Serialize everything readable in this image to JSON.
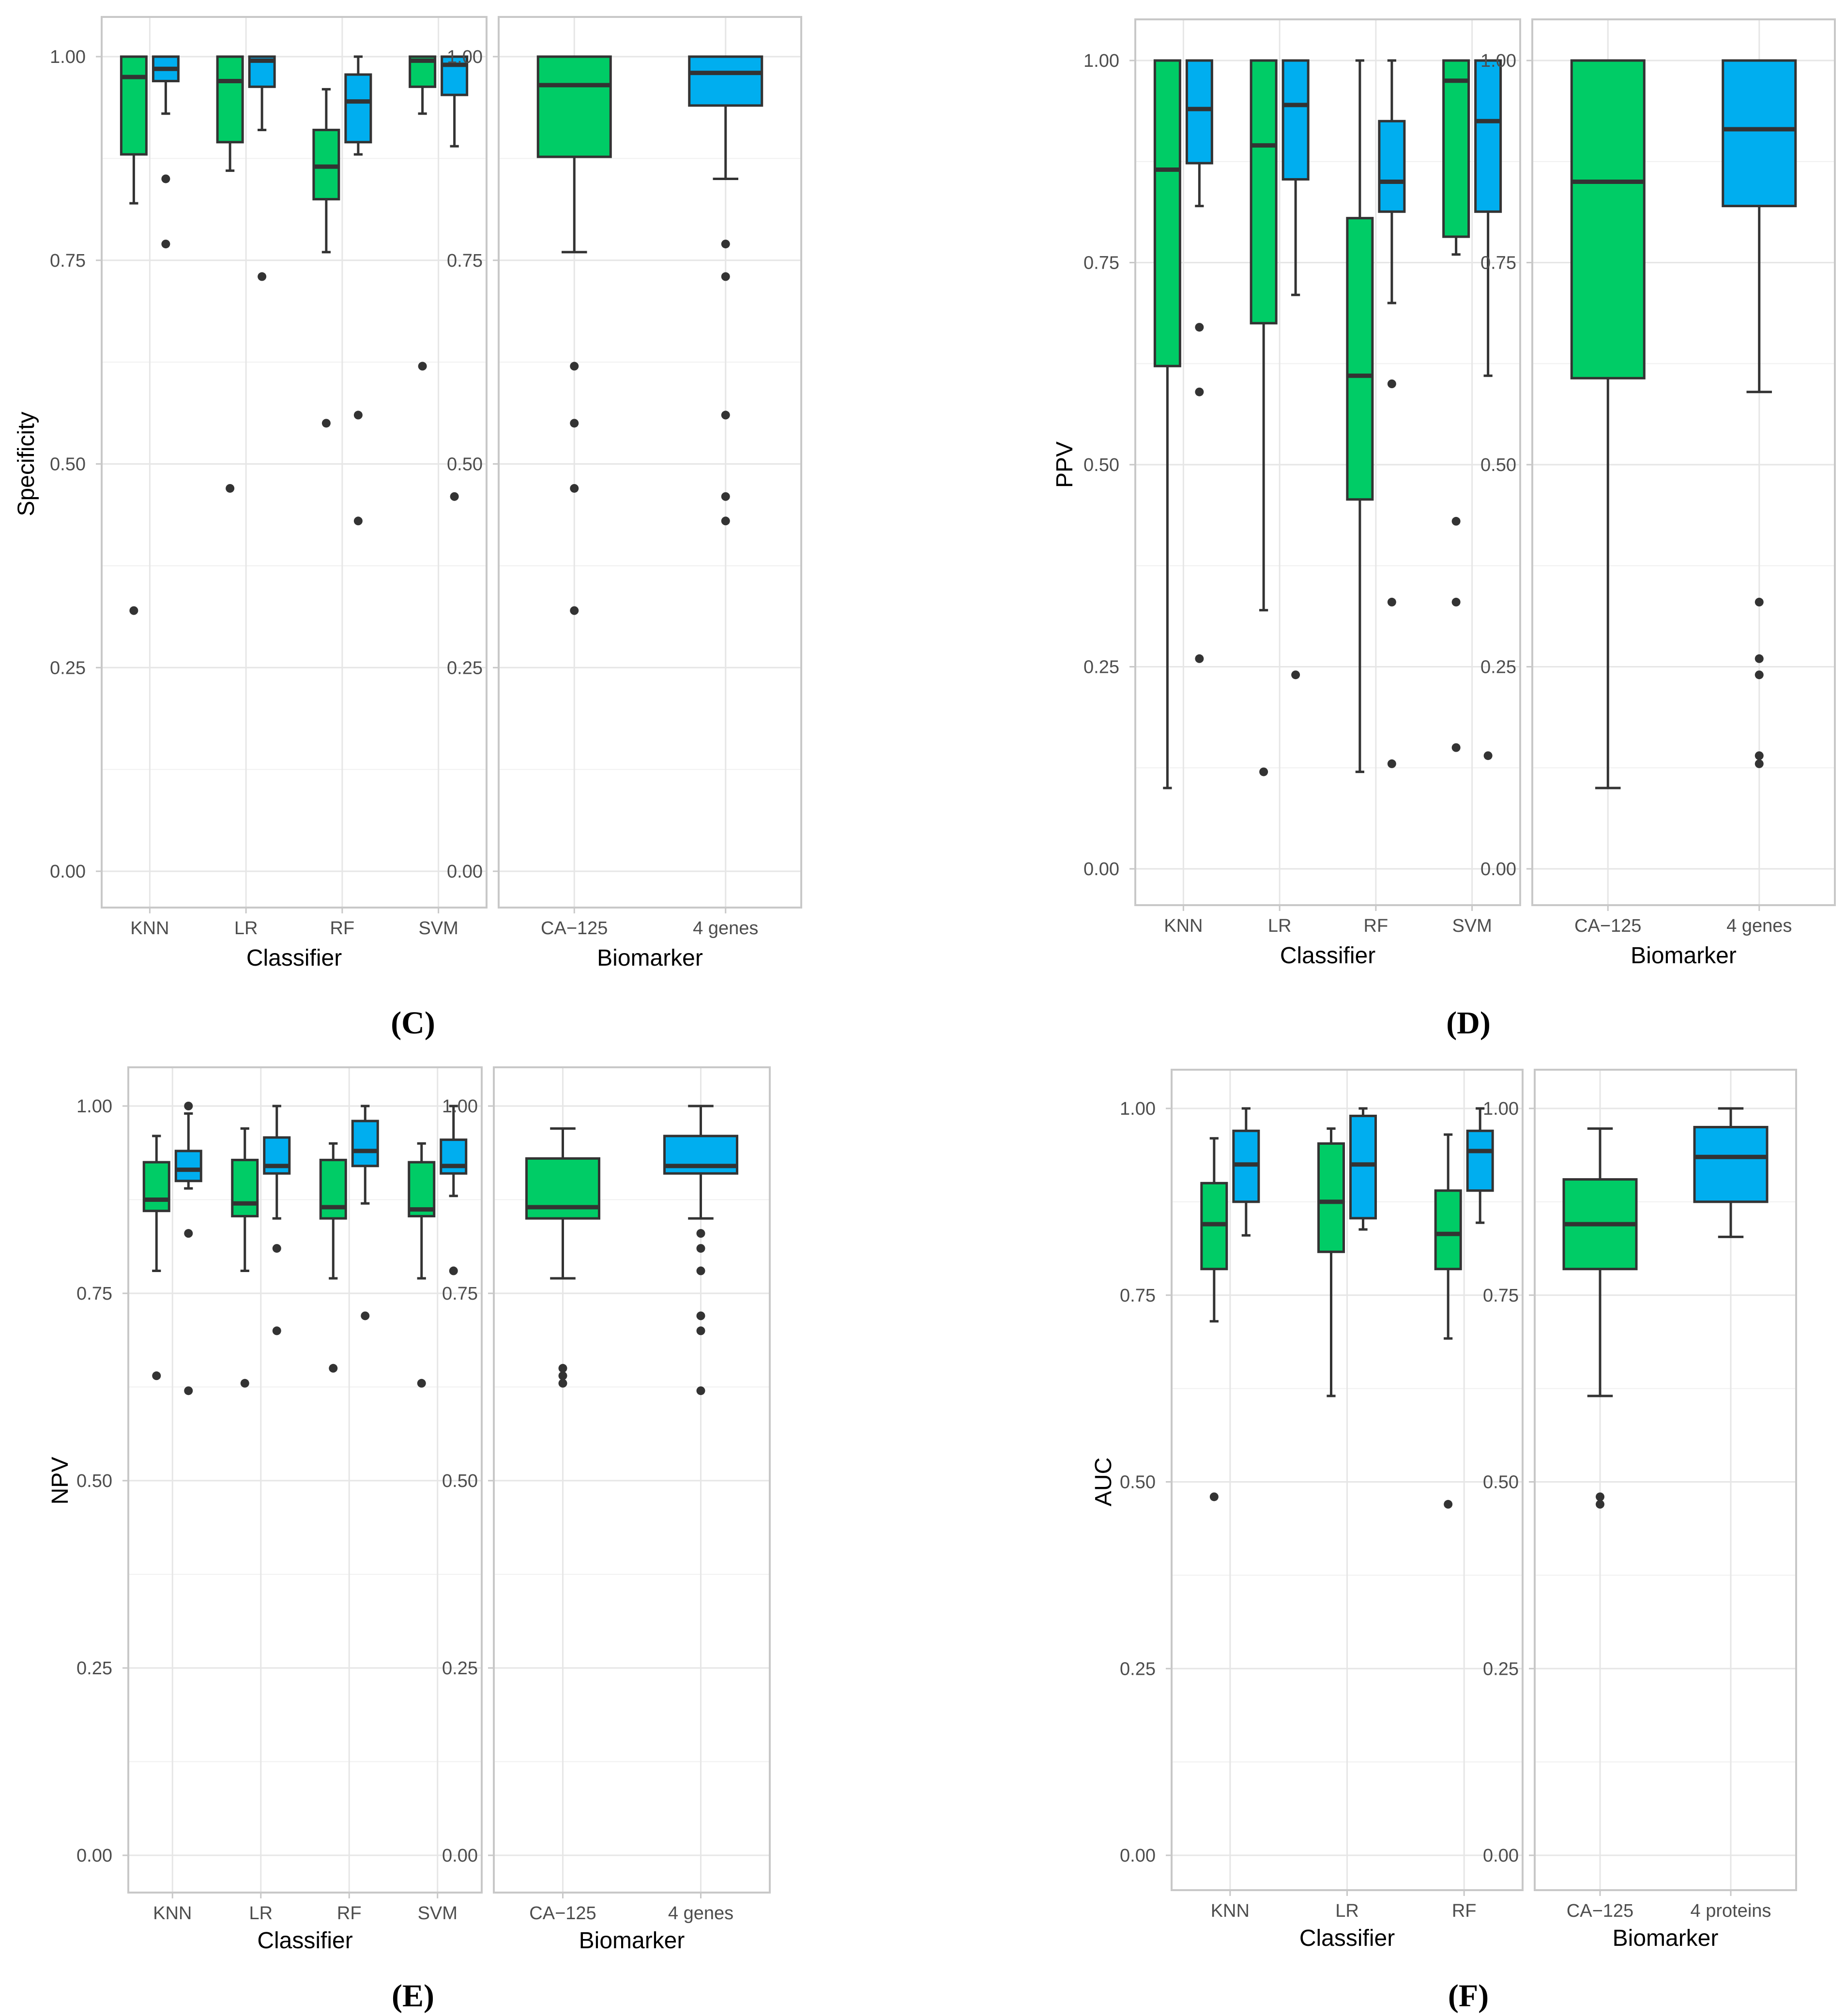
{
  "colors": {
    "green": "#00CC66",
    "blue": "#00AEEF"
  },
  "panel_labels": [
    {
      "id": "C",
      "text": "(C)"
    },
    {
      "id": "D",
      "text": "(D)"
    },
    {
      "id": "E",
      "text": "(E)"
    },
    {
      "id": "F",
      "text": "(F)"
    }
  ],
  "chart_data": [
    {
      "id": "C-classifier",
      "type": "boxplot",
      "ylabel": "Specificity",
      "xlabel": "Classifier",
      "ylim": [
        0,
        1
      ],
      "yticks": [
        "0.00",
        "0.25",
        "0.50",
        "0.75",
        "1.00"
      ],
      "categories": [
        "KNN",
        "LR",
        "RF",
        "SVM"
      ],
      "boxes": [
        {
          "category": "KNN",
          "color": "green",
          "min": 0.82,
          "q1": 0.88,
          "median": 0.975,
          "q3": 1.0,
          "max": 1.0,
          "outliers": [
            0.32
          ]
        },
        {
          "category": "KNN",
          "color": "blue",
          "min": 0.93,
          "q1": 0.97,
          "median": 0.985,
          "q3": 1.0,
          "max": 1.0,
          "outliers": [
            0.85,
            0.77
          ]
        },
        {
          "category": "LR",
          "color": "green",
          "min": 0.86,
          "q1": 0.895,
          "median": 0.97,
          "q3": 1.0,
          "max": 1.0,
          "outliers": [
            0.47
          ]
        },
        {
          "category": "LR",
          "color": "blue",
          "min": 0.91,
          "q1": 0.963,
          "median": 0.995,
          "q3": 1.0,
          "max": 1.0,
          "outliers": [
            0.73
          ]
        },
        {
          "category": "RF",
          "color": "green",
          "min": 0.76,
          "q1": 0.825,
          "median": 0.865,
          "q3": 0.91,
          "max": 0.96,
          "outliers": [
            0.55
          ]
        },
        {
          "category": "RF",
          "color": "blue",
          "min": 0.88,
          "q1": 0.895,
          "median": 0.945,
          "q3": 0.978,
          "max": 1.0,
          "outliers": [
            0.56,
            0.43
          ]
        },
        {
          "category": "SVM",
          "color": "green",
          "min": 0.93,
          "q1": 0.963,
          "median": 0.995,
          "q3": 1.0,
          "max": 1.0,
          "outliers": [
            0.62
          ]
        },
        {
          "category": "SVM",
          "color": "blue",
          "min": 0.89,
          "q1": 0.953,
          "median": 0.99,
          "q3": 1.0,
          "max": 1.0,
          "outliers": [
            0.46
          ]
        }
      ]
    },
    {
      "id": "C-biomarker",
      "type": "boxplot",
      "ylabel": "",
      "xlabel": "Biomarker",
      "ylim": [
        0,
        1
      ],
      "yticks": [
        "0.00",
        "0.25",
        "0.50",
        "0.75",
        "1.00"
      ],
      "categories": [
        "CA−125",
        "4 genes"
      ],
      "boxes": [
        {
          "category": "CA−125",
          "color": "green",
          "min": 0.76,
          "q1": 0.877,
          "median": 0.965,
          "q3": 1.0,
          "max": 1.0,
          "outliers": [
            0.62,
            0.55,
            0.47,
            0.32
          ]
        },
        {
          "category": "4 genes",
          "color": "blue",
          "min": 0.85,
          "q1": 0.94,
          "median": 0.98,
          "q3": 1.0,
          "max": 1.0,
          "outliers": [
            0.77,
            0.73,
            0.56,
            0.46,
            0.43
          ]
        }
      ]
    },
    {
      "id": "D-classifier",
      "type": "boxplot",
      "ylabel": "PPV",
      "xlabel": "Classifier",
      "ylim": [
        0,
        1
      ],
      "yticks": [
        "0.00",
        "0.25",
        "0.50",
        "0.75",
        "1.00"
      ],
      "categories": [
        "KNN",
        "LR",
        "RF",
        "SVM"
      ],
      "boxes": [
        {
          "category": "KNN",
          "color": "green",
          "min": 0.1,
          "q1": 0.622,
          "median": 0.865,
          "q3": 1.0,
          "max": 1.0,
          "outliers": []
        },
        {
          "category": "KNN",
          "color": "blue",
          "min": 0.82,
          "q1": 0.873,
          "median": 0.94,
          "q3": 1.0,
          "max": 1.0,
          "outliers": [
            0.67,
            0.59,
            0.26
          ]
        },
        {
          "category": "LR",
          "color": "green",
          "min": 0.32,
          "q1": 0.675,
          "median": 0.895,
          "q3": 1.0,
          "max": 1.0,
          "outliers": [
            0.12
          ]
        },
        {
          "category": "LR",
          "color": "blue",
          "min": 0.71,
          "q1": 0.853,
          "median": 0.945,
          "q3": 1.0,
          "max": 1.0,
          "outliers": [
            0.24
          ]
        },
        {
          "category": "RF",
          "color": "green",
          "min": 0.12,
          "q1": 0.457,
          "median": 0.61,
          "q3": 0.805,
          "max": 1.0,
          "outliers": []
        },
        {
          "category": "RF",
          "color": "blue",
          "min": 0.7,
          "q1": 0.813,
          "median": 0.85,
          "q3": 0.925,
          "max": 1.0,
          "outliers": [
            0.6,
            0.33,
            0.13
          ]
        },
        {
          "category": "SVM",
          "color": "green",
          "min": 0.76,
          "q1": 0.782,
          "median": 0.975,
          "q3": 1.0,
          "max": 1.0,
          "outliers": [
            0.43,
            0.33,
            0.15
          ]
        },
        {
          "category": "SVM",
          "color": "blue",
          "min": 0.61,
          "q1": 0.813,
          "median": 0.925,
          "q3": 1.0,
          "max": 1.0,
          "outliers": [
            0.14
          ]
        }
      ]
    },
    {
      "id": "D-biomarker",
      "type": "boxplot",
      "ylabel": "",
      "xlabel": "Biomarker",
      "ylim": [
        0,
        1
      ],
      "yticks": [
        "0.00",
        "0.25",
        "0.50",
        "0.75",
        "1.00"
      ],
      "categories": [
        "CA−125",
        "4 genes"
      ],
      "boxes": [
        {
          "category": "CA−125",
          "color": "green",
          "min": 0.1,
          "q1": 0.607,
          "median": 0.85,
          "q3": 1.0,
          "max": 1.0,
          "outliers": []
        },
        {
          "category": "4 genes",
          "color": "blue",
          "min": 0.59,
          "q1": 0.82,
          "median": 0.915,
          "q3": 1.0,
          "max": 1.0,
          "outliers": [
            0.33,
            0.26,
            0.24,
            0.14,
            0.13
          ]
        }
      ]
    },
    {
      "id": "E-classifier",
      "type": "boxplot",
      "ylabel": "NPV",
      "xlabel": "Classifier",
      "ylim": [
        0,
        1
      ],
      "yticks": [
        "0.00",
        "0.25",
        "0.50",
        "0.75",
        "1.00"
      ],
      "categories": [
        "KNN",
        "LR",
        "RF",
        "SVM"
      ],
      "boxes": [
        {
          "category": "KNN",
          "color": "green",
          "min": 0.78,
          "q1": 0.86,
          "median": 0.875,
          "q3": 0.925,
          "max": 0.96,
          "outliers": [
            0.64
          ]
        },
        {
          "category": "KNN",
          "color": "blue",
          "min": 0.89,
          "q1": 0.9,
          "median": 0.915,
          "q3": 0.94,
          "max": 0.99,
          "outliers": [
            1.0,
            0.83,
            0.62
          ]
        },
        {
          "category": "LR",
          "color": "green",
          "min": 0.78,
          "q1": 0.853,
          "median": 0.87,
          "q3": 0.928,
          "max": 0.97,
          "outliers": [
            0.63
          ]
        },
        {
          "category": "LR",
          "color": "blue",
          "min": 0.85,
          "q1": 0.91,
          "median": 0.92,
          "q3": 0.958,
          "max": 1.0,
          "outliers": [
            0.81,
            0.7
          ]
        },
        {
          "category": "RF",
          "color": "green",
          "min": 0.77,
          "q1": 0.85,
          "median": 0.865,
          "q3": 0.928,
          "max": 0.95,
          "outliers": [
            0.65
          ]
        },
        {
          "category": "RF",
          "color": "blue",
          "min": 0.87,
          "q1": 0.92,
          "median": 0.94,
          "q3": 0.98,
          "max": 1.0,
          "outliers": [
            0.72
          ]
        },
        {
          "category": "SVM",
          "color": "green",
          "min": 0.77,
          "q1": 0.853,
          "median": 0.862,
          "q3": 0.925,
          "max": 0.95,
          "outliers": [
            0.63
          ]
        },
        {
          "category": "SVM",
          "color": "blue",
          "min": 0.88,
          "q1": 0.91,
          "median": 0.92,
          "q3": 0.955,
          "max": 1.0,
          "outliers": [
            0.78
          ]
        }
      ]
    },
    {
      "id": "E-biomarker",
      "type": "boxplot",
      "ylabel": "",
      "xlabel": "Biomarker",
      "ylim": [
        0,
        1
      ],
      "yticks": [
        "0.00",
        "0.25",
        "0.50",
        "0.75",
        "1.00"
      ],
      "categories": [
        "CA−125",
        "4 genes"
      ],
      "boxes": [
        {
          "category": "CA−125",
          "color": "green",
          "min": 0.77,
          "q1": 0.85,
          "median": 0.865,
          "q3": 0.93,
          "max": 0.97,
          "outliers": [
            0.65,
            0.64,
            0.63
          ]
        },
        {
          "category": "4 genes",
          "color": "blue",
          "min": 0.85,
          "q1": 0.91,
          "median": 0.92,
          "q3": 0.96,
          "max": 1.0,
          "outliers": [
            0.83,
            0.81,
            0.78,
            0.72,
            0.7,
            0.62
          ]
        }
      ]
    },
    {
      "id": "F-classifier",
      "type": "boxplot",
      "ylabel": "AUC",
      "xlabel": "Classifier",
      "ylim": [
        0,
        1
      ],
      "yticks": [
        "0.00",
        "0.25",
        "0.50",
        "0.75",
        "1.00"
      ],
      "categories": [
        "KNN",
        "LR",
        "RF"
      ],
      "boxes": [
        {
          "category": "KNN",
          "color": "green",
          "min": 0.715,
          "q1": 0.785,
          "median": 0.845,
          "q3": 0.9,
          "max": 0.96,
          "outliers": [
            0.48
          ]
        },
        {
          "category": "KNN",
          "color": "blue",
          "min": 0.83,
          "q1": 0.875,
          "median": 0.925,
          "q3": 0.97,
          "max": 1.0,
          "outliers": []
        },
        {
          "category": "LR",
          "color": "green",
          "min": 0.615,
          "q1": 0.808,
          "median": 0.875,
          "q3": 0.953,
          "max": 0.973,
          "outliers": []
        },
        {
          "category": "LR",
          "color": "blue",
          "min": 0.838,
          "q1": 0.853,
          "median": 0.925,
          "q3": 0.99,
          "max": 1.0,
          "outliers": []
        },
        {
          "category": "RF",
          "color": "green",
          "min": 0.692,
          "q1": 0.785,
          "median": 0.832,
          "q3": 0.89,
          "max": 0.965,
          "outliers": [
            0.47
          ]
        },
        {
          "category": "RF",
          "color": "blue",
          "min": 0.847,
          "q1": 0.89,
          "median": 0.943,
          "q3": 0.97,
          "max": 1.0,
          "outliers": []
        }
      ]
    },
    {
      "id": "F-biomarker",
      "type": "boxplot",
      "ylabel": "",
      "xlabel": "Biomarker",
      "ylim": [
        0,
        1
      ],
      "yticks": [
        "0.00",
        "0.25",
        "0.50",
        "0.75",
        "1.00"
      ],
      "categories": [
        "CA−125",
        "4 proteins"
      ],
      "boxes": [
        {
          "category": "CA−125",
          "color": "green",
          "min": 0.615,
          "q1": 0.785,
          "median": 0.845,
          "q3": 0.905,
          "max": 0.973,
          "outliers": [
            0.48,
            0.47
          ]
        },
        {
          "category": "4 proteins",
          "color": "blue",
          "min": 0.828,
          "q1": 0.875,
          "median": 0.935,
          "q3": 0.975,
          "max": 1.0,
          "outliers": []
        }
      ]
    }
  ]
}
